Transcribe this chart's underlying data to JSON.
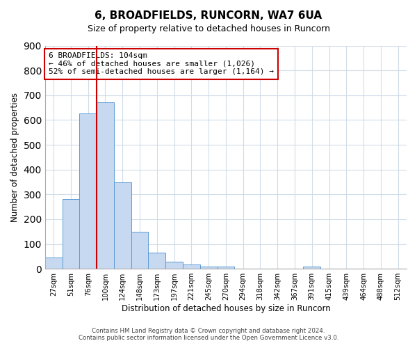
{
  "title": "6, BROADFIELDS, RUNCORN, WA7 6UA",
  "subtitle": "Size of property relative to detached houses in Runcorn",
  "xlabel": "Distribution of detached houses by size in Runcorn",
  "ylabel": "Number of detached properties",
  "bar_labels": [
    "27sqm",
    "51sqm",
    "76sqm",
    "100sqm",
    "124sqm",
    "148sqm",
    "173sqm",
    "197sqm",
    "221sqm",
    "245sqm",
    "270sqm",
    "294sqm",
    "318sqm",
    "342sqm",
    "367sqm",
    "391sqm",
    "415sqm",
    "439sqm",
    "464sqm",
    "488sqm",
    "512sqm"
  ],
  "bar_values": [
    45,
    280,
    625,
    670,
    348,
    148,
    65,
    30,
    18,
    10,
    8,
    0,
    0,
    0,
    0,
    10,
    0,
    0,
    0,
    0,
    0
  ],
  "bar_color": "#c7d9f0",
  "bar_edge_color": "#5b9bd5",
  "vline_color": "#cc0000",
  "annotation_text": "6 BROADFIELDS: 104sqm\n← 46% of detached houses are smaller (1,026)\n52% of semi-detached houses are larger (1,164) →",
  "annotation_box_color": "#ffffff",
  "annotation_box_edge": "#cc0000",
  "ylim": [
    0,
    900
  ],
  "yticks": [
    0,
    100,
    200,
    300,
    400,
    500,
    600,
    700,
    800,
    900
  ],
  "footer": "Contains HM Land Registry data © Crown copyright and database right 2024.\nContains public sector information licensed under the Open Government Licence v3.0.",
  "bg_color": "#ffffff",
  "grid_color": "#d0dce8"
}
